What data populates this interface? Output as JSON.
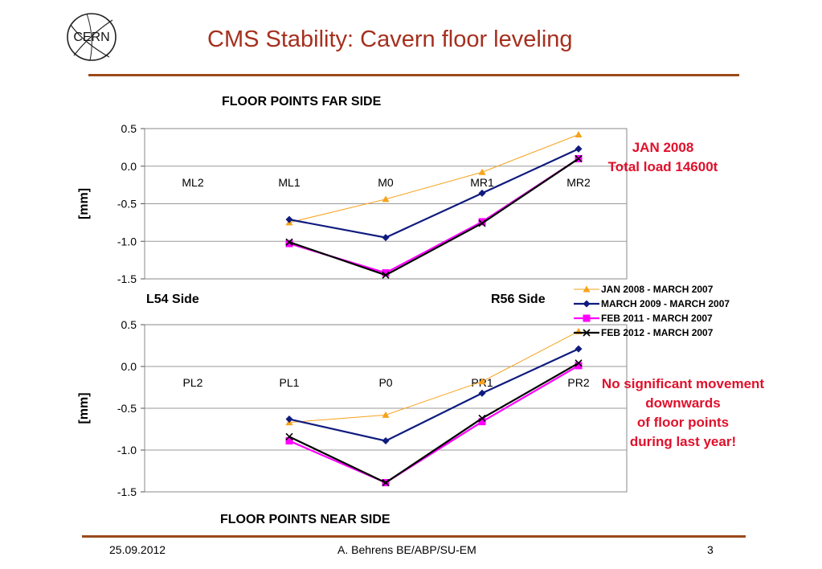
{
  "header": {
    "title": "CMS Stability: Cavern floor leveling",
    "logo_text": "CERN"
  },
  "colors": {
    "title": "#a5301e",
    "rule": "#9b4a1c",
    "note": "#e0102b"
  },
  "top_chart_title": "FLOOR POINTS FAR SIDE",
  "bottom_chart_title": "FLOOR POINTS NEAR SIDE",
  "left_side_label": "L54 Side",
  "right_side_label": "R56 Side",
  "note_top": {
    "line1": "JAN 2008",
    "line2": "Total load 14600t"
  },
  "note_bottom": {
    "line1": "No significant movement",
    "line2": "downwards",
    "line3": "of floor points",
    "line4": "during last year!"
  },
  "footer": {
    "date": "25.09.2012",
    "author": "A. Behrens BE/ABP/SU-EM",
    "page": "3"
  },
  "legend": [
    {
      "label": "JAN 2008 - MARCH 2007",
      "color": "#f7a21b",
      "marker": "triangle"
    },
    {
      "label": "MARCH 2009 - MARCH 2007",
      "color": "#0f1b7e",
      "marker": "diamond"
    },
    {
      "label": "FEB 2011 - MARCH 2007",
      "color": "#ff00ff",
      "marker": "square"
    },
    {
      "label": "FEB 2012 - MARCH 2007",
      "color": "#000000",
      "marker": "x"
    }
  ],
  "chart_data": [
    {
      "type": "line",
      "title": "FLOOR POINTS FAR SIDE",
      "ylabel": "[mm]",
      "xlabel": "",
      "ylim": [
        -1.5,
        0.5
      ],
      "yticks": [
        "0.5",
        "0.0",
        "-0.5",
        "-1.0",
        "-1.5"
      ],
      "categories": [
        "ML2",
        "ML1",
        "M0",
        "MR1",
        "MR2"
      ],
      "series": [
        {
          "name": "JAN 2008 - MARCH 2007",
          "values": [
            null,
            -0.75,
            -0.44,
            -0.08,
            0.42
          ]
        },
        {
          "name": "MARCH 2009 - MARCH 2007",
          "values": [
            null,
            -0.71,
            -0.95,
            -0.36,
            0.23
          ]
        },
        {
          "name": "FEB 2011 - MARCH 2007",
          "values": [
            null,
            -1.03,
            -1.42,
            -0.74,
            0.1
          ]
        },
        {
          "name": "FEB 2012 - MARCH 2007",
          "values": [
            null,
            -1.01,
            -1.45,
            -0.76,
            0.1
          ]
        }
      ]
    },
    {
      "type": "line",
      "title": "FLOOR POINTS NEAR SIDE",
      "ylabel": "[mm]",
      "xlabel": "",
      "ylim": [
        -1.5,
        0.5
      ],
      "yticks": [
        "0.5",
        "0.0",
        "-0.5",
        "-1.0",
        "-1.5"
      ],
      "categories": [
        "PL2",
        "PL1",
        "P0",
        "PR1",
        "PR2"
      ],
      "series": [
        {
          "name": "JAN 2008 - MARCH 2007",
          "values": [
            null,
            -0.67,
            -0.58,
            -0.18,
            0.42
          ]
        },
        {
          "name": "MARCH 2009 - MARCH 2007",
          "values": [
            null,
            -0.63,
            -0.89,
            -0.32,
            0.21
          ]
        },
        {
          "name": "FEB 2011 - MARCH 2007",
          "values": [
            null,
            -0.89,
            -1.39,
            -0.66,
            0.01
          ]
        },
        {
          "name": "FEB 2012 - MARCH 2007",
          "values": [
            null,
            -0.84,
            -1.39,
            -0.62,
            0.04
          ]
        }
      ]
    }
  ]
}
